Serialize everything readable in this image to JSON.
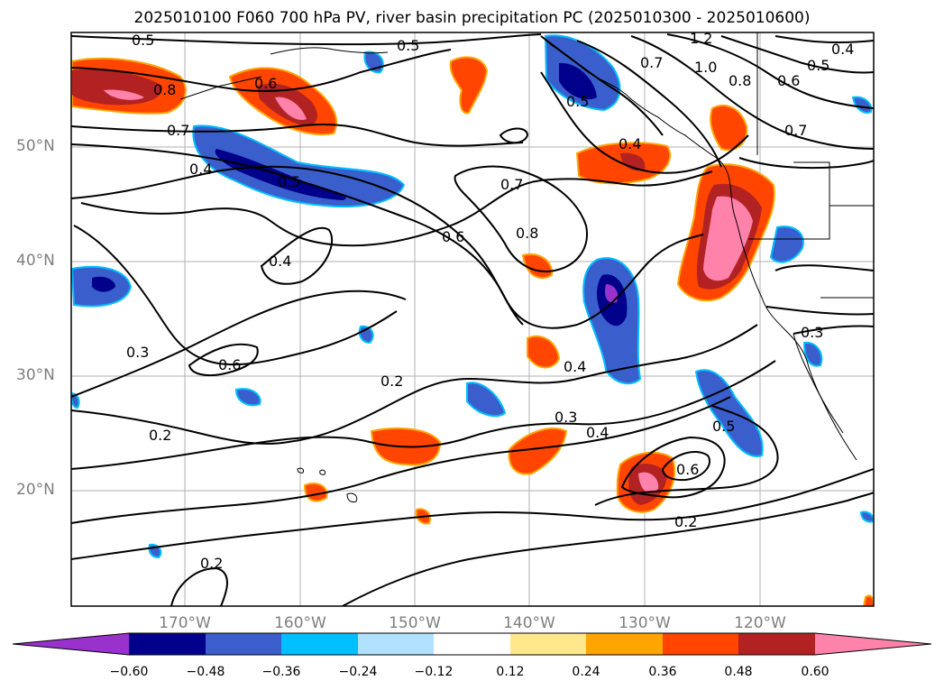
{
  "title": "2025010100 F060 700 hPa PV, river basin precipitation PC (2025010300 - 2025010600)",
  "latitude_labels": [
    "50°N",
    "40°N",
    "30°N",
    "20°N"
  ],
  "longitude_labels": [
    "170°W",
    "160°W",
    "150°W",
    "140°W",
    "130°W",
    "120°W"
  ],
  "contour_labels": [
    "0.5",
    "0.8",
    "0.6",
    "0.7",
    "0.4",
    "0.5",
    "0.5",
    "0.5",
    "0.7",
    "1.2",
    "1.0",
    "0.8",
    "0.6",
    "0.5",
    "0.4",
    "0.7",
    "0.4",
    "0.7",
    "0.8",
    "0.6",
    "0.4",
    "0.3",
    "0.6",
    "0.2",
    "0.4",
    "0.2",
    "0.3",
    "0.4",
    "0.5",
    "0.6",
    "0.2",
    "0.2",
    "0.3"
  ],
  "colorbar": {
    "tick_labels": [
      "−0.60",
      "−0.48",
      "−0.36",
      "−0.24",
      "−0.12",
      "0.12",
      "0.24",
      "0.36",
      "0.48",
      "0.60"
    ],
    "colors": [
      "#9932cc",
      "#00008b",
      "#3a5fcd",
      "#00bfff",
      "#b0e2ff",
      "#ffffff",
      "#ffe88c",
      "#ffa500",
      "#ff4500",
      "#b22222",
      "#ff82ab"
    ]
  }
}
